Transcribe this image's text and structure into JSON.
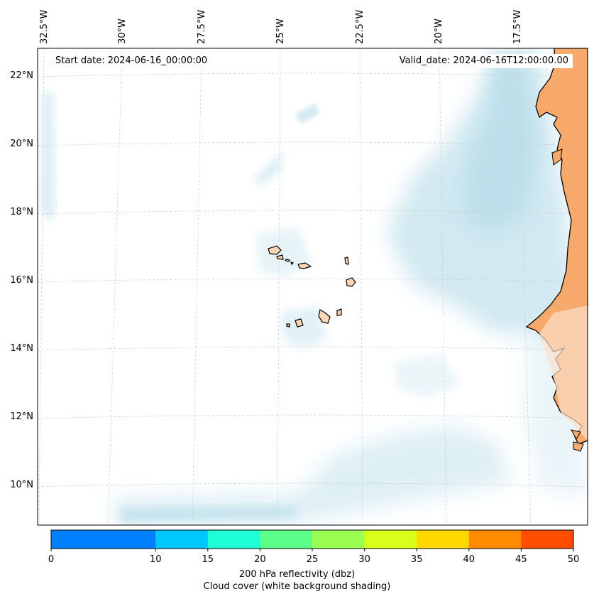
{
  "map": {
    "top_lon_labels": [
      "32.5°W",
      "30°W",
      "27.5°W",
      "25°W",
      "22.5°W",
      "20°W",
      "17.5°W"
    ],
    "left_lat_labels": [
      "22°N",
      "20°N",
      "18°N",
      "16°N",
      "14°N",
      "12°N",
      "10°N"
    ],
    "start_date_text": "Start date: 2024-06-16_00:00:00",
    "valid_date_text": "Valid_date: 2024-06-16T12:00:00.00",
    "land_color": "#f4a460",
    "cloud_color": "#add8e6"
  },
  "colorbar": {
    "bins": [
      {
        "from": 0,
        "to": 5,
        "color": "#0080ff"
      },
      {
        "from": 5,
        "to": 10,
        "color": "#0080ff"
      },
      {
        "from": 10,
        "to": 15,
        "color": "#00c8ff"
      },
      {
        "from": 15,
        "to": 20,
        "color": "#1effd8"
      },
      {
        "from": 20,
        "to": 25,
        "color": "#5cff8a"
      },
      {
        "from": 25,
        "to": 30,
        "color": "#9aff52"
      },
      {
        "from": 30,
        "to": 35,
        "color": "#d8ff1a"
      },
      {
        "from": 35,
        "to": 40,
        "color": "#ffd800"
      },
      {
        "from": 40,
        "to": 45,
        "color": "#ff8c00"
      },
      {
        "from": 45,
        "to": 50,
        "color": "#ff4e00"
      }
    ],
    "tick_labels": [
      "0",
      "10",
      "15",
      "20",
      "25",
      "30",
      "35",
      "40",
      "45",
      "50"
    ],
    "title_line1": "200 hPa reflectivity (dbz)",
    "title_line2": "Cloud cover (white background shading)"
  }
}
